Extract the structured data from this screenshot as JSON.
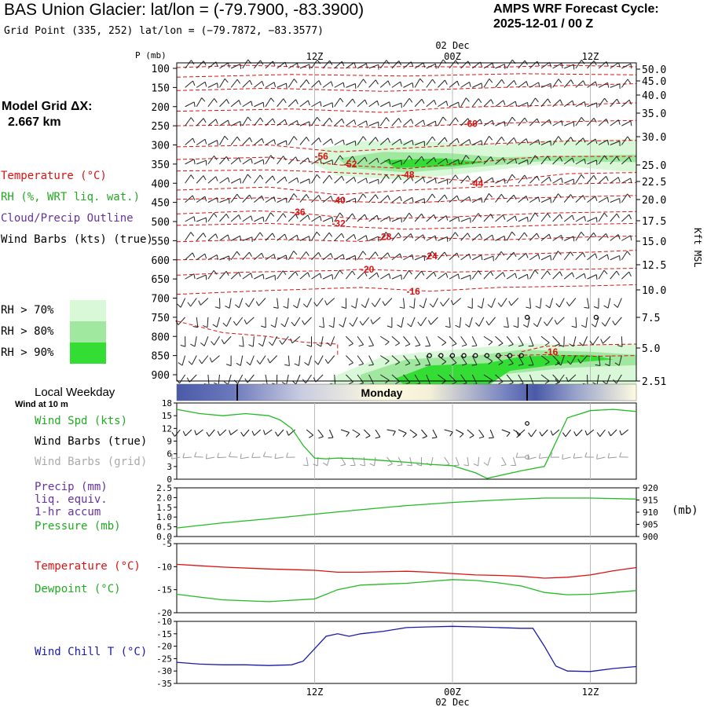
{
  "header": {
    "title": "BAS Union Glacier:  lat/lon = (-79.7900, -83.3900)",
    "grid_point": "Grid Point (335, 252) lat/lon = (−79.7872, −83.3577)",
    "cycle_title": "AMPS WRF Forecast Cycle:",
    "cycle_value": "2025-12-01 / 00  Z"
  },
  "model_grid": {
    "label": "Model Grid ΔX:",
    "value": "2.667 km"
  },
  "time_axis": {
    "date_label": "02 Dec",
    "tick_labels": [
      "12Z",
      "00Z",
      "12Z"
    ]
  },
  "legend": {
    "temperature": "Temperature (°C)",
    "rh": "RH (%, WRT liq. wat.)",
    "cloud": "Cloud/Precip Outline",
    "wind": "Wind Barbs (kts) (true)",
    "rh70": "RH > 70%",
    "rh80": "RH > 80%",
    "rh90": "RH > 90%"
  },
  "colors": {
    "temperature": "#dd1111",
    "rh_text": "#22aa22",
    "cloud_text": "#663399",
    "rh70": "#d8f8d8",
    "rh80": "#a0e8a0",
    "rh90": "#33dd33",
    "pressure": "#22bb22",
    "windchill": "#1a1aaa",
    "grid": "#bbbbbb"
  },
  "weekday": {
    "title": "Local Weekday",
    "label": "Monday"
  },
  "surface": {
    "wind_at": "Wind at 10 m",
    "spd_label": "Wind Spd (kts)",
    "barbs_true": "Wind Barbs (true)",
    "barbs_grid": "Wind Barbs (grid)",
    "precip_label_1": "Precip (mm)",
    "precip_label_2": "liq. equiv.",
    "precip_label_3": "1-hr accum",
    "pressure_label": "Pressure (mb)",
    "pressure_unit": "(mb)",
    "temp_label": "Temperature (°C)",
    "dew_label": "Dewpoint (°C)",
    "chill_label": "Wind Chill T (°C)"
  },
  "chart_data": [
    {
      "type": "line",
      "panel": "upper-air",
      "ylabel": "P (mb)",
      "right_axis_label": "Kft MSL",
      "pressure_ticks": [
        100,
        150,
        200,
        250,
        300,
        350,
        400,
        450,
        500,
        550,
        600,
        650,
        700,
        750,
        800,
        850,
        900
      ],
      "height_ticks": [
        "50.0",
        "45.0",
        "40.0",
        "35.0",
        "30.0",
        "25.0",
        "22.5",
        "20.0",
        "17.5",
        "15.0",
        "12.5",
        "10.0",
        "7.5",
        "5.0",
        "2.51"
      ],
      "temperature_labels": [
        {
          "text": "-60",
          "t": 25,
          "p": 245
        },
        {
          "text": "-56",
          "t": 12,
          "p": 330
        },
        {
          "text": "-52",
          "t": 14.5,
          "p": 350
        },
        {
          "text": "-48",
          "t": 19.5,
          "p": 378
        },
        {
          "text": "-44",
          "t": 25.5,
          "p": 400
        },
        {
          "text": "-40",
          "t": 13.5,
          "p": 445
        },
        {
          "text": "-36",
          "t": 10,
          "p": 475
        },
        {
          "text": "-32",
          "t": 13.5,
          "p": 505
        },
        {
          "text": "-28",
          "t": 17.5,
          "p": 540
        },
        {
          "text": "-24",
          "t": 21.5,
          "p": 590
        },
        {
          "text": "-20",
          "t": 16,
          "p": 625
        },
        {
          "text": "-16",
          "t": 20,
          "p": 683
        },
        {
          "text": "-16",
          "t": 32,
          "p": 840
        }
      ]
    },
    {
      "type": "line",
      "panel": "wind-speed",
      "ylabel": "Wind Spd (kts)",
      "ylim": [
        0,
        18
      ],
      "yticks": [
        0,
        3,
        6,
        9,
        12,
        15,
        18
      ],
      "x": [
        0,
        2,
        4,
        6,
        8,
        9,
        10,
        11,
        12,
        13,
        14,
        16,
        18,
        20,
        22,
        24,
        26,
        27,
        28,
        30,
        32,
        34,
        36,
        38,
        40
      ],
      "series": [
        {
          "values": [
            16.5,
            15.5,
            15.0,
            15.5,
            15.0,
            14.0,
            12.0,
            8.0,
            5.0,
            4.8,
            5.0,
            4.8,
            4.4,
            4.0,
            3.5,
            3.2,
            1.5,
            0.2,
            0.8,
            2.0,
            3.0,
            14.5,
            16.2,
            16.5,
            16.0
          ]
        }
      ]
    },
    {
      "type": "line",
      "panel": "precip-pressure",
      "ylim": [
        0.0,
        2.5
      ],
      "yticks": [
        "0.0",
        "0.5",
        "1.0",
        "1.5",
        "2.0",
        "2.5"
      ],
      "y2lim": [
        900,
        920
      ],
      "y2ticks": [
        "900",
        "905",
        "910",
        "915",
        "920"
      ],
      "x": [
        0,
        4,
        8,
        12,
        16,
        20,
        24,
        28,
        32,
        36,
        40
      ],
      "series": [
        {
          "values": [
            903.5,
            905.6,
            907.3,
            909.2,
            911.0,
            912.7,
            914.0,
            915.0,
            915.8,
            915.8,
            915.4
          ]
        }
      ]
    },
    {
      "type": "line",
      "panel": "temperature-dewpoint",
      "ylim": [
        -20,
        -5
      ],
      "yticks": [
        "-5",
        "-10",
        "-15",
        "-20"
      ],
      "x": [
        0,
        2,
        4,
        8,
        12,
        14,
        16,
        20,
        22,
        24,
        26,
        28,
        30,
        32,
        34,
        36,
        38,
        40
      ],
      "series": [
        {
          "values": [
            -9.5,
            -9.8,
            -10.1,
            -10.5,
            -10.8,
            -11.2,
            -11.2,
            -11.0,
            -11.2,
            -11.5,
            -11.8,
            -11.9,
            -12.1,
            -12.5,
            -12.3,
            -11.8,
            -10.9,
            -10.2
          ]
        },
        {
          "values": [
            -16.0,
            -16.6,
            -17.2,
            -17.6,
            -17.0,
            -15.0,
            -14.0,
            -13.6,
            -13.2,
            -12.8,
            -13.0,
            -13.5,
            -14.2,
            -15.6,
            -16.1,
            -16.0,
            -15.6,
            -15.2
          ]
        }
      ]
    },
    {
      "type": "line",
      "panel": "wind-chill",
      "ylim": [
        -35,
        -10
      ],
      "yticks": [
        "-10",
        "-15",
        "-20",
        "-25",
        "-30",
        "-35"
      ],
      "x": [
        0,
        2,
        4,
        6,
        8,
        10,
        11,
        12,
        13,
        14,
        15,
        16,
        18,
        20,
        22,
        24,
        26,
        28,
        30,
        31,
        32,
        33,
        34,
        36,
        38,
        40
      ],
      "series": [
        {
          "values": [
            -26.5,
            -27.2,
            -27.5,
            -27.5,
            -27.8,
            -27.5,
            -26.0,
            -21.0,
            -16.0,
            -15.0,
            -16.0,
            -15.0,
            -14.0,
            -12.5,
            -12.2,
            -12.0,
            -12.2,
            -12.5,
            -12.8,
            -12.8,
            -20.0,
            -28.0,
            -30.0,
            -30.2,
            -29.0,
            -28.2
          ]
        }
      ]
    }
  ]
}
